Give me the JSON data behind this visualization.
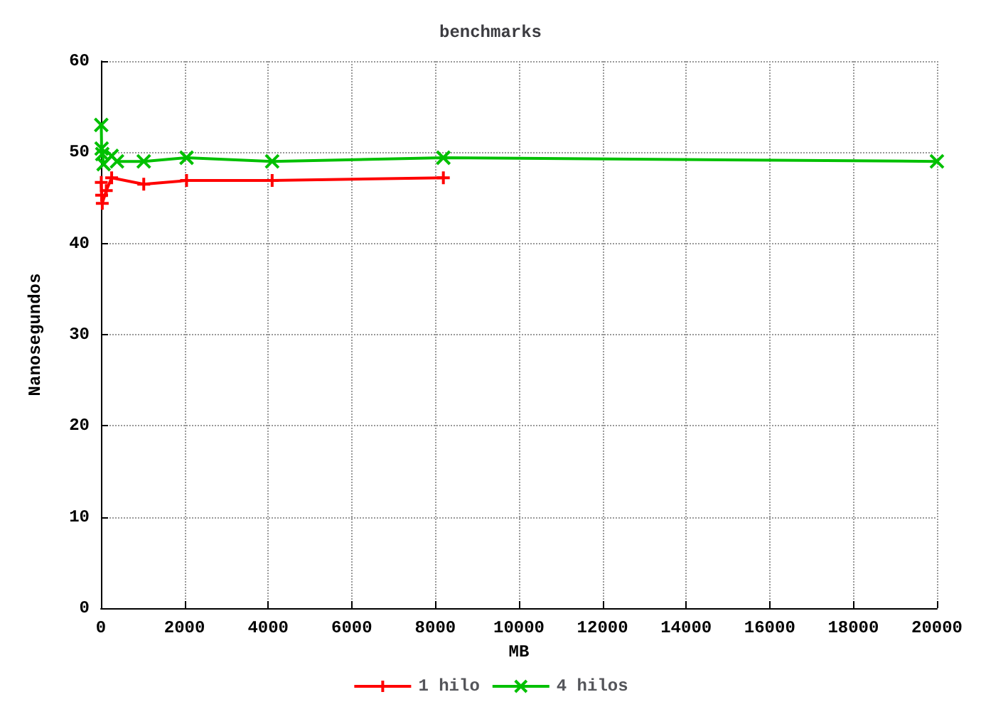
{
  "chart_data": {
    "type": "line",
    "title": "benchmarks",
    "xlabel": "MB",
    "ylabel": "Nanosegundos",
    "xlim": [
      0,
      20000
    ],
    "xticks": [
      0,
      2000,
      4000,
      6000,
      8000,
      10000,
      12000,
      14000,
      16000,
      18000,
      20000
    ],
    "ylim": [
      0,
      60
    ],
    "yticks": [
      0,
      10,
      20,
      30,
      40,
      50,
      60
    ],
    "grid": true,
    "legend": "bottom",
    "series": [
      {
        "name": "1 hilo",
        "color": "#ff0000",
        "marker": "plus",
        "x": [
          8,
          16,
          32,
          128,
          256,
          1024,
          2048,
          4096,
          8192
        ],
        "values": [
          46.7,
          45.3,
          44.4,
          45.8,
          47.2,
          46.5,
          46.9,
          46.9,
          47.2
        ]
      },
      {
        "name": "4 hilos",
        "color": "#00c000",
        "marker": "cross",
        "x": [
          8,
          16,
          32,
          64,
          256,
          384,
          1024,
          2048,
          4096,
          8192,
          20000
        ],
        "values": [
          53.0,
          50.4,
          49.8,
          48.7,
          49.6,
          49.0,
          49.0,
          49.4,
          49.0,
          49.4,
          49.0
        ]
      }
    ]
  }
}
